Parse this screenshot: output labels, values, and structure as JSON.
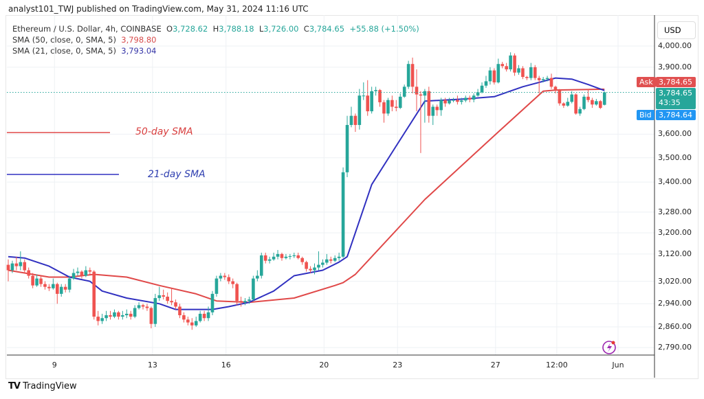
{
  "header": {
    "published": "analyst101_TWJ published on TradingView.com, May 31, 2024 11:16 UTC"
  },
  "legend": {
    "symbol": "Ethereum / U.S. Dollar, 4h, COINBASE",
    "open_label": "O",
    "open": "3,728.62",
    "high_label": "H",
    "high": "3,788.18",
    "low_label": "L",
    "low": "3,726.00",
    "close_label": "C",
    "close": "3,784.65",
    "change": "+55.88 (+1.50%)",
    "sma50_label": "SMA (50, close, 0, SMA, 5)",
    "sma50_value": "3,798.80",
    "sma21_label": "SMA (21, close, 0, SMA, 5)",
    "sma21_value": "3,793.04"
  },
  "price_axis": {
    "currency": "USD",
    "ask_label": "Ask",
    "ask": "3,784.65",
    "last": "3,784.65",
    "countdown": "43:35",
    "bid_label": "Bid",
    "bid": "3,784.64"
  },
  "annotations": {
    "sma50": "50-day SMA",
    "sma21": "21-day SMA"
  },
  "footer": {
    "brand": "TradingView"
  },
  "colors": {
    "up": "#26a69a",
    "down": "#ef5350",
    "sma50": "#e04848",
    "sma21": "#3030c0",
    "ask": "#e05050",
    "bid": "#2196f3"
  },
  "chart_data": {
    "type": "candlestick",
    "title": "Ethereum / U.S. Dollar, 4h, COINBASE",
    "y_scale": "log",
    "ylim": [
      2770,
      4060
    ],
    "y_ticks": [
      4000,
      3900,
      3600,
      3500,
      3400,
      3280,
      3200,
      3120,
      3020,
      2940,
      2860,
      2790
    ],
    "y_tick_labels": [
      "4,000.00",
      "3,900.00",
      "3,600.00",
      "3,500.00",
      "3,400.00",
      "3,280.00",
      "3,200.00",
      "3,120.00",
      "3,020.00",
      "2,940.00",
      "2,860.00",
      "2,790.00"
    ],
    "x_ticks": [
      {
        "index": 12,
        "label": "9"
      },
      {
        "index": 36,
        "label": "13"
      },
      {
        "index": 54,
        "label": "16"
      },
      {
        "index": 78,
        "label": "20"
      },
      {
        "index": 96,
        "label": "23"
      },
      {
        "index": 120,
        "label": "27"
      },
      {
        "index": 135,
        "label": "12:00"
      },
      {
        "index": 150,
        "label": "Jun"
      }
    ],
    "grid": true,
    "last_price": 3784.65,
    "candles": [
      [
        3080,
        3100,
        3020,
        3060
      ],
      [
        3060,
        3095,
        3050,
        3085
      ],
      [
        3085,
        3110,
        3060,
        3075
      ],
      [
        3075,
        3130,
        3060,
        3090
      ],
      [
        3090,
        3100,
        3050,
        3060
      ],
      [
        3060,
        3070,
        3030,
        3040
      ],
      [
        3040,
        3050,
        2995,
        3005
      ],
      [
        3005,
        3045,
        3000,
        3030
      ],
      [
        3030,
        3040,
        3000,
        3010
      ],
      [
        3010,
        3020,
        2990,
        3000
      ],
      [
        3000,
        3010,
        2985,
        2995
      ],
      [
        2995,
        3030,
        2990,
        3010
      ],
      [
        3010,
        3015,
        2940,
        2975
      ],
      [
        2975,
        3010,
        2965,
        3000
      ],
      [
        3000,
        3010,
        2980,
        2990
      ],
      [
        2990,
        3040,
        2980,
        3030
      ],
      [
        3030,
        3065,
        3025,
        3050
      ],
      [
        3050,
        3070,
        3040,
        3055
      ],
      [
        3055,
        3060,
        3030,
        3040
      ],
      [
        3040,
        3075,
        3035,
        3060
      ],
      [
        3060,
        3070,
        3045,
        3055
      ],
      [
        3055,
        3060,
        2885,
        2895
      ],
      [
        2895,
        2915,
        2865,
        2880
      ],
      [
        2880,
        2905,
        2870,
        2890
      ],
      [
        2890,
        2915,
        2880,
        2900
      ],
      [
        2900,
        2915,
        2885,
        2895
      ],
      [
        2895,
        2920,
        2890,
        2910
      ],
      [
        2910,
        2915,
        2885,
        2895
      ],
      [
        2895,
        2915,
        2885,
        2900
      ],
      [
        2900,
        2920,
        2890,
        2905
      ],
      [
        2905,
        2915,
        2885,
        2895
      ],
      [
        2895,
        2935,
        2890,
        2925
      ],
      [
        2925,
        2945,
        2920,
        2935
      ],
      [
        2935,
        2940,
        2920,
        2930
      ],
      [
        2930,
        2940,
        2915,
        2925
      ],
      [
        2925,
        2930,
        2855,
        2870
      ],
      [
        2870,
        2975,
        2860,
        2960
      ],
      [
        2960,
        3000,
        2950,
        2970
      ],
      [
        2970,
        2990,
        2955,
        2965
      ],
      [
        2965,
        2980,
        2940,
        2950
      ],
      [
        2950,
        2995,
        2935,
        2945
      ],
      [
        2945,
        2955,
        2920,
        2930
      ],
      [
        2930,
        2940,
        2890,
        2900
      ],
      [
        2900,
        2910,
        2875,
        2885
      ],
      [
        2885,
        2895,
        2865,
        2875
      ],
      [
        2875,
        2890,
        2850,
        2865
      ],
      [
        2865,
        2895,
        2860,
        2880
      ],
      [
        2880,
        2915,
        2875,
        2905
      ],
      [
        2905,
        2915,
        2880,
        2890
      ],
      [
        2890,
        2930,
        2880,
        2910
      ],
      [
        2910,
        2985,
        2900,
        2975
      ],
      [
        2975,
        3040,
        2965,
        3030
      ],
      [
        3030,
        3050,
        3020,
        3040
      ],
      [
        3040,
        3050,
        3025,
        3035
      ],
      [
        3035,
        3045,
        3010,
        3020
      ],
      [
        3020,
        3030,
        2995,
        3010
      ],
      [
        3010,
        3015,
        2935,
        2950
      ],
      [
        2950,
        2965,
        2930,
        2945
      ],
      [
        2945,
        2960,
        2935,
        2950
      ],
      [
        2950,
        2965,
        2940,
        2955
      ],
      [
        2955,
        3040,
        2950,
        3030
      ],
      [
        3030,
        3060,
        3020,
        3040
      ],
      [
        3040,
        3125,
        3030,
        3115
      ],
      [
        3115,
        3125,
        3085,
        3095
      ],
      [
        3095,
        3110,
        3085,
        3100
      ],
      [
        3100,
        3125,
        3095,
        3110
      ],
      [
        3110,
        3135,
        3100,
        3120
      ],
      [
        3120,
        3125,
        3095,
        3105
      ],
      [
        3105,
        3120,
        3100,
        3110
      ],
      [
        3110,
        3120,
        3100,
        3112
      ],
      [
        3112,
        3125,
        3105,
        3115
      ],
      [
        3115,
        3125,
        3100,
        3105
      ],
      [
        3105,
        3110,
        3080,
        3090
      ],
      [
        3090,
        3095,
        3055,
        3065
      ],
      [
        3065,
        3075,
        3050,
        3060
      ],
      [
        3060,
        3085,
        3045,
        3070
      ],
      [
        3070,
        3130,
        3060,
        3080
      ],
      [
        3080,
        3100,
        3070,
        3088
      ],
      [
        3088,
        3120,
        3080,
        3100
      ],
      [
        3100,
        3110,
        3085,
        3095
      ],
      [
        3095,
        3115,
        3090,
        3105
      ],
      [
        3105,
        3125,
        3095,
        3110
      ],
      [
        3110,
        3460,
        3105,
        3440
      ],
      [
        3440,
        3680,
        3420,
        3640
      ],
      [
        3640,
        3720,
        3630,
        3680
      ],
      [
        3680,
        3690,
        3610,
        3640
      ],
      [
        3640,
        3800,
        3620,
        3770
      ],
      [
        3770,
        3830,
        3750,
        3770
      ],
      [
        3770,
        3840,
        3680,
        3700
      ],
      [
        3700,
        3810,
        3690,
        3790
      ],
      [
        3790,
        3810,
        3770,
        3795
      ],
      [
        3795,
        3800,
        3720,
        3740
      ],
      [
        3740,
        3750,
        3650,
        3690
      ],
      [
        3690,
        3760,
        3680,
        3750
      ],
      [
        3750,
        3770,
        3700,
        3720
      ],
      [
        3720,
        3750,
        3700,
        3715
      ],
      [
        3715,
        3780,
        3710,
        3765
      ],
      [
        3765,
        3820,
        3760,
        3810
      ],
      [
        3810,
        3930,
        3800,
        3915
      ],
      [
        3915,
        3945,
        3780,
        3810
      ],
      [
        3810,
        3890,
        3700,
        3775
      ],
      [
        3775,
        3790,
        3520,
        3770
      ],
      [
        3770,
        3800,
        3650,
        3790
      ],
      [
        3790,
        3810,
        3650,
        3680
      ],
      [
        3680,
        3730,
        3640,
        3720
      ],
      [
        3720,
        3730,
        3680,
        3705
      ],
      [
        3705,
        3760,
        3680,
        3750
      ],
      [
        3750,
        3760,
        3720,
        3735
      ],
      [
        3735,
        3760,
        3730,
        3748
      ],
      [
        3748,
        3760,
        3740,
        3750
      ],
      [
        3750,
        3770,
        3730,
        3742
      ],
      [
        3742,
        3760,
        3730,
        3748
      ],
      [
        3748,
        3770,
        3740,
        3760
      ],
      [
        3760,
        3770,
        3740,
        3752
      ],
      [
        3752,
        3780,
        3740,
        3770
      ],
      [
        3770,
        3800,
        3765,
        3785
      ],
      [
        3785,
        3830,
        3780,
        3815
      ],
      [
        3815,
        3860,
        3805,
        3835
      ],
      [
        3835,
        3900,
        3820,
        3885
      ],
      [
        3885,
        3895,
        3820,
        3830
      ],
      [
        3830,
        3940,
        3825,
        3915
      ],
      [
        3915,
        3925,
        3895,
        3905
      ],
      [
        3905,
        3920,
        3880,
        3890
      ],
      [
        3890,
        3970,
        3880,
        3955
      ],
      [
        3955,
        3965,
        3860,
        3875
      ],
      [
        3875,
        3910,
        3865,
        3895
      ],
      [
        3895,
        3905,
        3845,
        3855
      ],
      [
        3855,
        3860,
        3840,
        3850
      ],
      [
        3850,
        3920,
        3840,
        3900
      ],
      [
        3900,
        3910,
        3840,
        3850
      ],
      [
        3850,
        3860,
        3780,
        3840
      ],
      [
        3840,
        3855,
        3830,
        3845
      ],
      [
        3845,
        3860,
        3835,
        3850
      ],
      [
        3850,
        3870,
        3800,
        3810
      ],
      [
        3810,
        3815,
        3780,
        3795
      ],
      [
        3795,
        3800,
        3725,
        3735
      ],
      [
        3735,
        3740,
        3715,
        3725
      ],
      [
        3725,
        3760,
        3720,
        3742
      ],
      [
        3742,
        3790,
        3735,
        3775
      ],
      [
        3775,
        3780,
        3685,
        3690
      ],
      [
        3690,
        3720,
        3680,
        3710
      ],
      [
        3710,
        3775,
        3705,
        3765
      ],
      [
        3765,
        3800,
        3740,
        3750
      ],
      [
        3750,
        3760,
        3715,
        3730
      ],
      [
        3730,
        3755,
        3725,
        3745
      ],
      [
        3745,
        3750,
        3710,
        3715
      ],
      [
        3728.62,
        3788.18,
        3726.0,
        3784.65
      ]
    ],
    "series": [
      {
        "name": "SMA (50, close, 0, SMA, 5)",
        "color": "#e04848",
        "points": [
          [
            0,
            3060
          ],
          [
            10,
            3035
          ],
          [
            15,
            3035
          ],
          [
            21,
            3045
          ],
          [
            29,
            3035
          ],
          [
            37,
            3005
          ],
          [
            46,
            2975
          ],
          [
            51,
            2950
          ],
          [
            59,
            2945
          ],
          [
            70,
            2960
          ],
          [
            80,
            3005
          ],
          [
            82,
            3015
          ],
          [
            85,
            3045
          ],
          [
            102,
            3330
          ],
          [
            120,
            3610
          ],
          [
            131,
            3790
          ],
          [
            134,
            3795
          ],
          [
            146,
            3798.8
          ]
        ]
      },
      {
        "name": "SMA (21, close, 0, SMA, 5)",
        "color": "#3030c0",
        "points": [
          [
            0,
            3110
          ],
          [
            4,
            3105
          ],
          [
            10,
            3075
          ],
          [
            15,
            3035
          ],
          [
            20,
            3020
          ],
          [
            23,
            2985
          ],
          [
            29,
            2960
          ],
          [
            37,
            2940
          ],
          [
            41,
            2920
          ],
          [
            50,
            2920
          ],
          [
            54,
            2930
          ],
          [
            59,
            2945
          ],
          [
            65,
            2985
          ],
          [
            70,
            3040
          ],
          [
            77,
            3060
          ],
          [
            81,
            3090
          ],
          [
            83,
            3110
          ],
          [
            89,
            3390
          ],
          [
            95,
            3550
          ],
          [
            102,
            3745
          ],
          [
            112,
            3755
          ],
          [
            119,
            3765
          ],
          [
            126,
            3810
          ],
          [
            134,
            3850
          ],
          [
            138,
            3845
          ],
          [
            142,
            3820
          ],
          [
            146,
            3793
          ]
        ]
      }
    ]
  }
}
